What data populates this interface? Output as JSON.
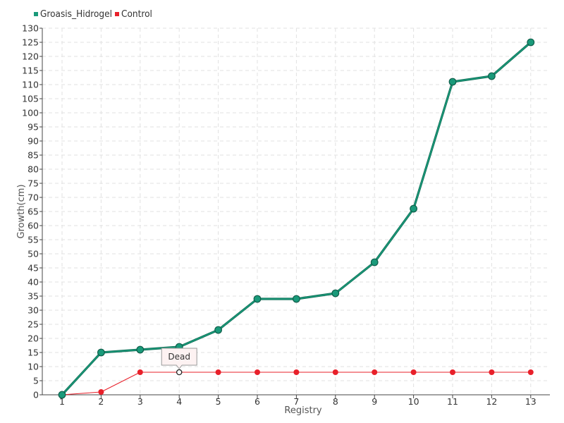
{
  "chart_data": {
    "type": "line",
    "categories": [
      "1",
      "2",
      "3",
      "4",
      "5",
      "6",
      "7",
      "8",
      "9",
      "10",
      "11",
      "12",
      "13"
    ],
    "series": [
      {
        "name": "Groasis_Hidrogel",
        "color": "#1a9a7a",
        "values": [
          0,
          15,
          16,
          17,
          23,
          34,
          34,
          36,
          47,
          66,
          111,
          113,
          125
        ]
      },
      {
        "name": "Control",
        "color": "#e8202a",
        "values": [
          0,
          1,
          8,
          8,
          8,
          8,
          8,
          8,
          8,
          8,
          8,
          8,
          8
        ]
      }
    ],
    "xlabel": "Registry",
    "ylabel": "Growth(cm)",
    "ylim": [
      0,
      130
    ],
    "ytick_step": 5,
    "grid": true,
    "legend": "top-left",
    "annotation": {
      "text": "Dead",
      "series": "Control",
      "category": "4"
    }
  }
}
